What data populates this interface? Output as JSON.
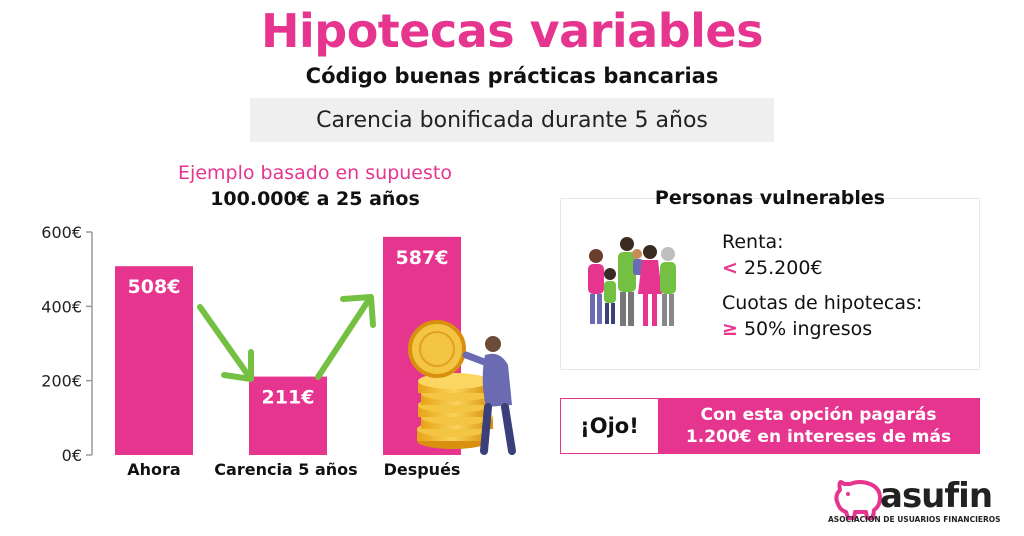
{
  "header": {
    "title": "Hipotecas variables",
    "subtitle": "Código buenas prácticas bancarias",
    "banner": "Carencia bonificada durante 5 años"
  },
  "example": {
    "title": "Ejemplo basado en supuesto",
    "subtitle": "100.000€ a 25 años"
  },
  "chart_data": {
    "type": "bar",
    "categories": [
      "Ahora",
      "Carencia 5 años",
      "Después"
    ],
    "values": [
      508,
      211,
      587
    ],
    "value_labels": [
      "508€",
      "211€",
      "587€"
    ],
    "yticks": [
      0,
      200,
      400,
      600
    ],
    "ytick_labels": [
      "0€",
      "200€",
      "400€",
      "600€"
    ],
    "ylim": [
      0,
      600
    ],
    "title": "",
    "xlabel": "",
    "ylabel": "",
    "grid": false,
    "bar_color": "#e6358f",
    "arrow_color": "#74c043"
  },
  "vulnerable": {
    "title": "Personas vulnerables",
    "renta_label": "Renta:",
    "renta_symbol": "<",
    "renta_value": " 25.200€",
    "cuotas_label": "Cuotas de hipotecas:",
    "cuotas_symbol": "≥",
    "cuotas_value": " 50% ingresos",
    "icon": "family-icon"
  },
  "warning": {
    "label": "¡Ojo!",
    "line1": "Con esta opción pagarás",
    "line2": "1.200€ en intereses de más"
  },
  "logo": {
    "name": "asufin",
    "tagline": "ASOCIACIÓN DE USUARIOS FINANCIEROS",
    "icon": "piggy-bank-icon"
  },
  "colors": {
    "accent": "#e6358f",
    "arrow": "#74c043"
  }
}
